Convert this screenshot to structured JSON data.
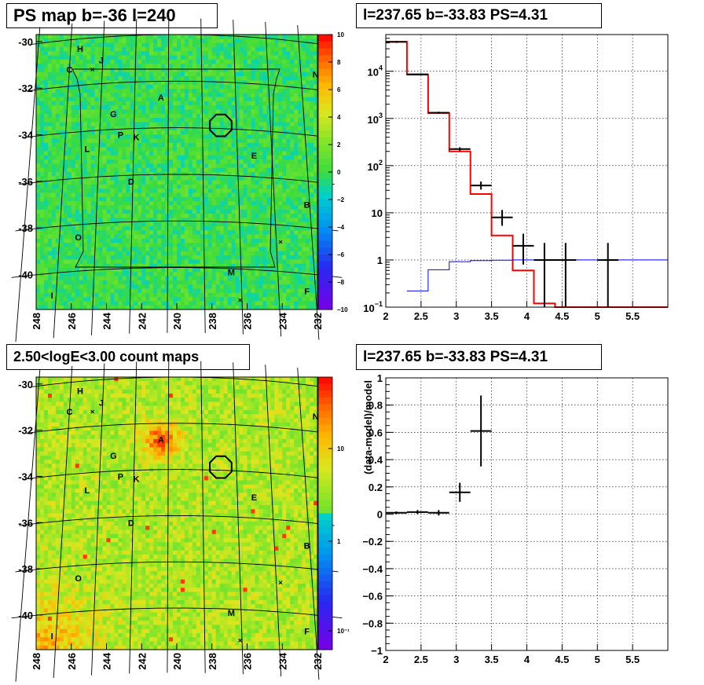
{
  "panels": {
    "ps_map": {
      "title": "PS map b=-36 l=240",
      "x_ticks": [
        "248",
        "246",
        "244",
        "242",
        "240",
        "238",
        "236",
        "234",
        "232"
      ],
      "y_ticks": [
        "-30",
        "-32",
        "-34",
        "-36",
        "-38",
        "-40"
      ],
      "colorbar_ticks": [
        "10",
        "8",
        "6",
        "4",
        "2",
        "0",
        "−2",
        "−4",
        "−6",
        "−8",
        "−10"
      ],
      "source_labels": [
        "H",
        "J",
        "C",
        "N",
        "A",
        "G",
        "P",
        "K",
        "L",
        "E",
        "D",
        "B",
        "O",
        "M",
        "F",
        "I"
      ]
    },
    "count_map": {
      "title": "2.50<logE<3.00 count maps",
      "x_ticks": [
        "248",
        "246",
        "244",
        "242",
        "240",
        "238",
        "236",
        "234",
        "232"
      ],
      "y_ticks": [
        "-30",
        "-32",
        "-34",
        "-36",
        "-38",
        "-40"
      ],
      "colorbar_ticks": [
        "10",
        "1",
        "10⁻¹"
      ],
      "source_labels": [
        "H",
        "J",
        "C",
        "N",
        "A",
        "G",
        "P",
        "K",
        "L",
        "E",
        "D",
        "B",
        "O",
        "M",
        "F",
        "I"
      ]
    },
    "spectrum": {
      "title": "l=237.65 b=-33.83 PS=4.31"
    },
    "residual": {
      "title": "l=237.65 b=-33.83 PS=4.31"
    }
  },
  "colors": {
    "model": "#ff0000",
    "background_model": "#0000ff",
    "data": "#000000",
    "map_green": "#33dd33"
  },
  "chart_data": [
    {
      "type": "heatmap",
      "title": "PS map b=-36 l=240",
      "xlabel": "",
      "ylabel": "",
      "xlim": [
        248,
        232
      ],
      "ylim": [
        -41.5,
        -29.7
      ],
      "zlim": [
        -10,
        10
      ],
      "marker_circle": {
        "l": 237.5,
        "b": -33.6
      },
      "sources": [
        {
          "name": "H",
          "l": 245.5,
          "b": -30.3
        },
        {
          "name": "J",
          "l": 244.3,
          "b": -30.8
        },
        {
          "name": "C",
          "l": 246.1,
          "b": -31.2
        },
        {
          "name": "N",
          "l": 232.1,
          "b": -31.4
        },
        {
          "name": "A",
          "l": 240.9,
          "b": -32.4
        },
        {
          "name": "G",
          "l": 243.6,
          "b": -33.1
        },
        {
          "name": "P",
          "l": 243.2,
          "b": -34.0
        },
        {
          "name": "K",
          "l": 242.3,
          "b": -34.1
        },
        {
          "name": "L",
          "l": 245.1,
          "b": -34.6
        },
        {
          "name": "E",
          "l": 235.6,
          "b": -34.9
        },
        {
          "name": "D",
          "l": 242.6,
          "b": -36.0
        },
        {
          "name": "B",
          "l": 232.6,
          "b": -37.0
        },
        {
          "name": "O",
          "l": 245.6,
          "b": -38.4
        },
        {
          "name": "M",
          "l": 236.9,
          "b": -39.9
        },
        {
          "name": "F",
          "l": 232.6,
          "b": -40.7
        },
        {
          "name": "I",
          "l": 247.1,
          "b": -40.9
        }
      ]
    },
    {
      "type": "heatmap",
      "title": "2.50<logE<3.00 count maps",
      "xlabel": "",
      "ylabel": "",
      "xlim": [
        248,
        232
      ],
      "ylim": [
        -41.5,
        -29.7
      ],
      "scale": "log",
      "zlim": [
        0.07,
        40
      ],
      "hotspot": {
        "l": 240.9,
        "b": -32.4
      }
    },
    {
      "type": "line",
      "title": "l=237.65 b=-33.83 PS=4.31",
      "xlabel": "",
      "ylabel": "",
      "xlim": [
        2,
        6
      ],
      "ylim": [
        0.1,
        60000
      ],
      "yscale": "log",
      "x_ticks": [
        2,
        2.5,
        3,
        3.5,
        4,
        4.5,
        5,
        5.5
      ],
      "grid": true,
      "series": [
        {
          "style": "step",
          "color": "#ff0000",
          "edges": [
            2,
            2.3,
            2.6,
            2.9,
            3.2,
            3.5,
            3.8,
            4.1,
            4.4,
            6
          ],
          "values": [
            42000,
            8500,
            1300,
            200,
            25,
            3.3,
            0.6,
            0.12,
            0.1
          ]
        },
        {
          "style": "step",
          "color": "#0000ff",
          "edges": [
            2.3,
            2.6,
            2.9,
            3.2,
            3.5,
            3.8,
            4.1,
            6
          ],
          "values": [
            0.22,
            0.62,
            0.92,
            0.97,
            0.99,
            1.0,
            1.0
          ]
        },
        {
          "style": "points",
          "color": "#000000",
          "points": [
            {
              "x": 2.15,
              "y": 42000,
              "xerr": 0.15,
              "ylo": 40000,
              "yhi": 44000
            },
            {
              "x": 2.45,
              "y": 8600,
              "xerr": 0.15,
              "ylo": 8300,
              "yhi": 8900
            },
            {
              "x": 2.75,
              "y": 1320,
              "xerr": 0.15,
              "ylo": 1250,
              "yhi": 1390
            },
            {
              "x": 3.05,
              "y": 225,
              "xerr": 0.15,
              "ylo": 205,
              "yhi": 245
            },
            {
              "x": 3.35,
              "y": 38,
              "xerr": 0.15,
              "ylo": 31,
              "yhi": 46
            },
            {
              "x": 3.65,
              "y": 8,
              "xerr": 0.15,
              "ylo": 5.3,
              "yhi": 11.5
            },
            {
              "x": 3.95,
              "y": 2,
              "xerr": 0.15,
              "ylo": 0.8,
              "yhi": 3.6
            },
            {
              "x": 4.25,
              "y": 1,
              "xerr": 0.15,
              "ylo": 0.1,
              "yhi": 2.3
            },
            {
              "x": 4.55,
              "y": 1,
              "xerr": 0.15,
              "ylo": 0.1,
              "yhi": 2.3
            },
            {
              "x": 5.15,
              "y": 1,
              "xerr": 0.15,
              "ylo": 0.1,
              "yhi": 2.3
            }
          ]
        }
      ]
    },
    {
      "type": "scatter",
      "title": "l=237.65 b=-33.83 PS=4.31",
      "xlabel": "",
      "ylabel": "(data-model)/model",
      "xlim": [
        2,
        6
      ],
      "ylim": [
        -1,
        1
      ],
      "x_ticks": [
        2,
        2.5,
        3,
        3.5,
        4,
        4.5,
        5,
        5.5
      ],
      "y_ticks": [
        -1,
        -0.8,
        -0.6,
        -0.4,
        -0.2,
        0,
        0.2,
        0.4,
        0.6,
        0.8,
        1
      ],
      "grid": true,
      "points": [
        {
          "x": 2.15,
          "y": 0.01,
          "xerr": 0.15,
          "err": 0.01
        },
        {
          "x": 2.45,
          "y": 0.015,
          "xerr": 0.15,
          "err": 0.015
        },
        {
          "x": 2.75,
          "y": 0.01,
          "xerr": 0.15,
          "err": 0.02
        },
        {
          "x": 3.05,
          "y": 0.16,
          "xerr": 0.15,
          "err": 0.07
        },
        {
          "x": 3.35,
          "y": 0.61,
          "xerr": 0.15,
          "err": 0.26
        }
      ]
    }
  ]
}
